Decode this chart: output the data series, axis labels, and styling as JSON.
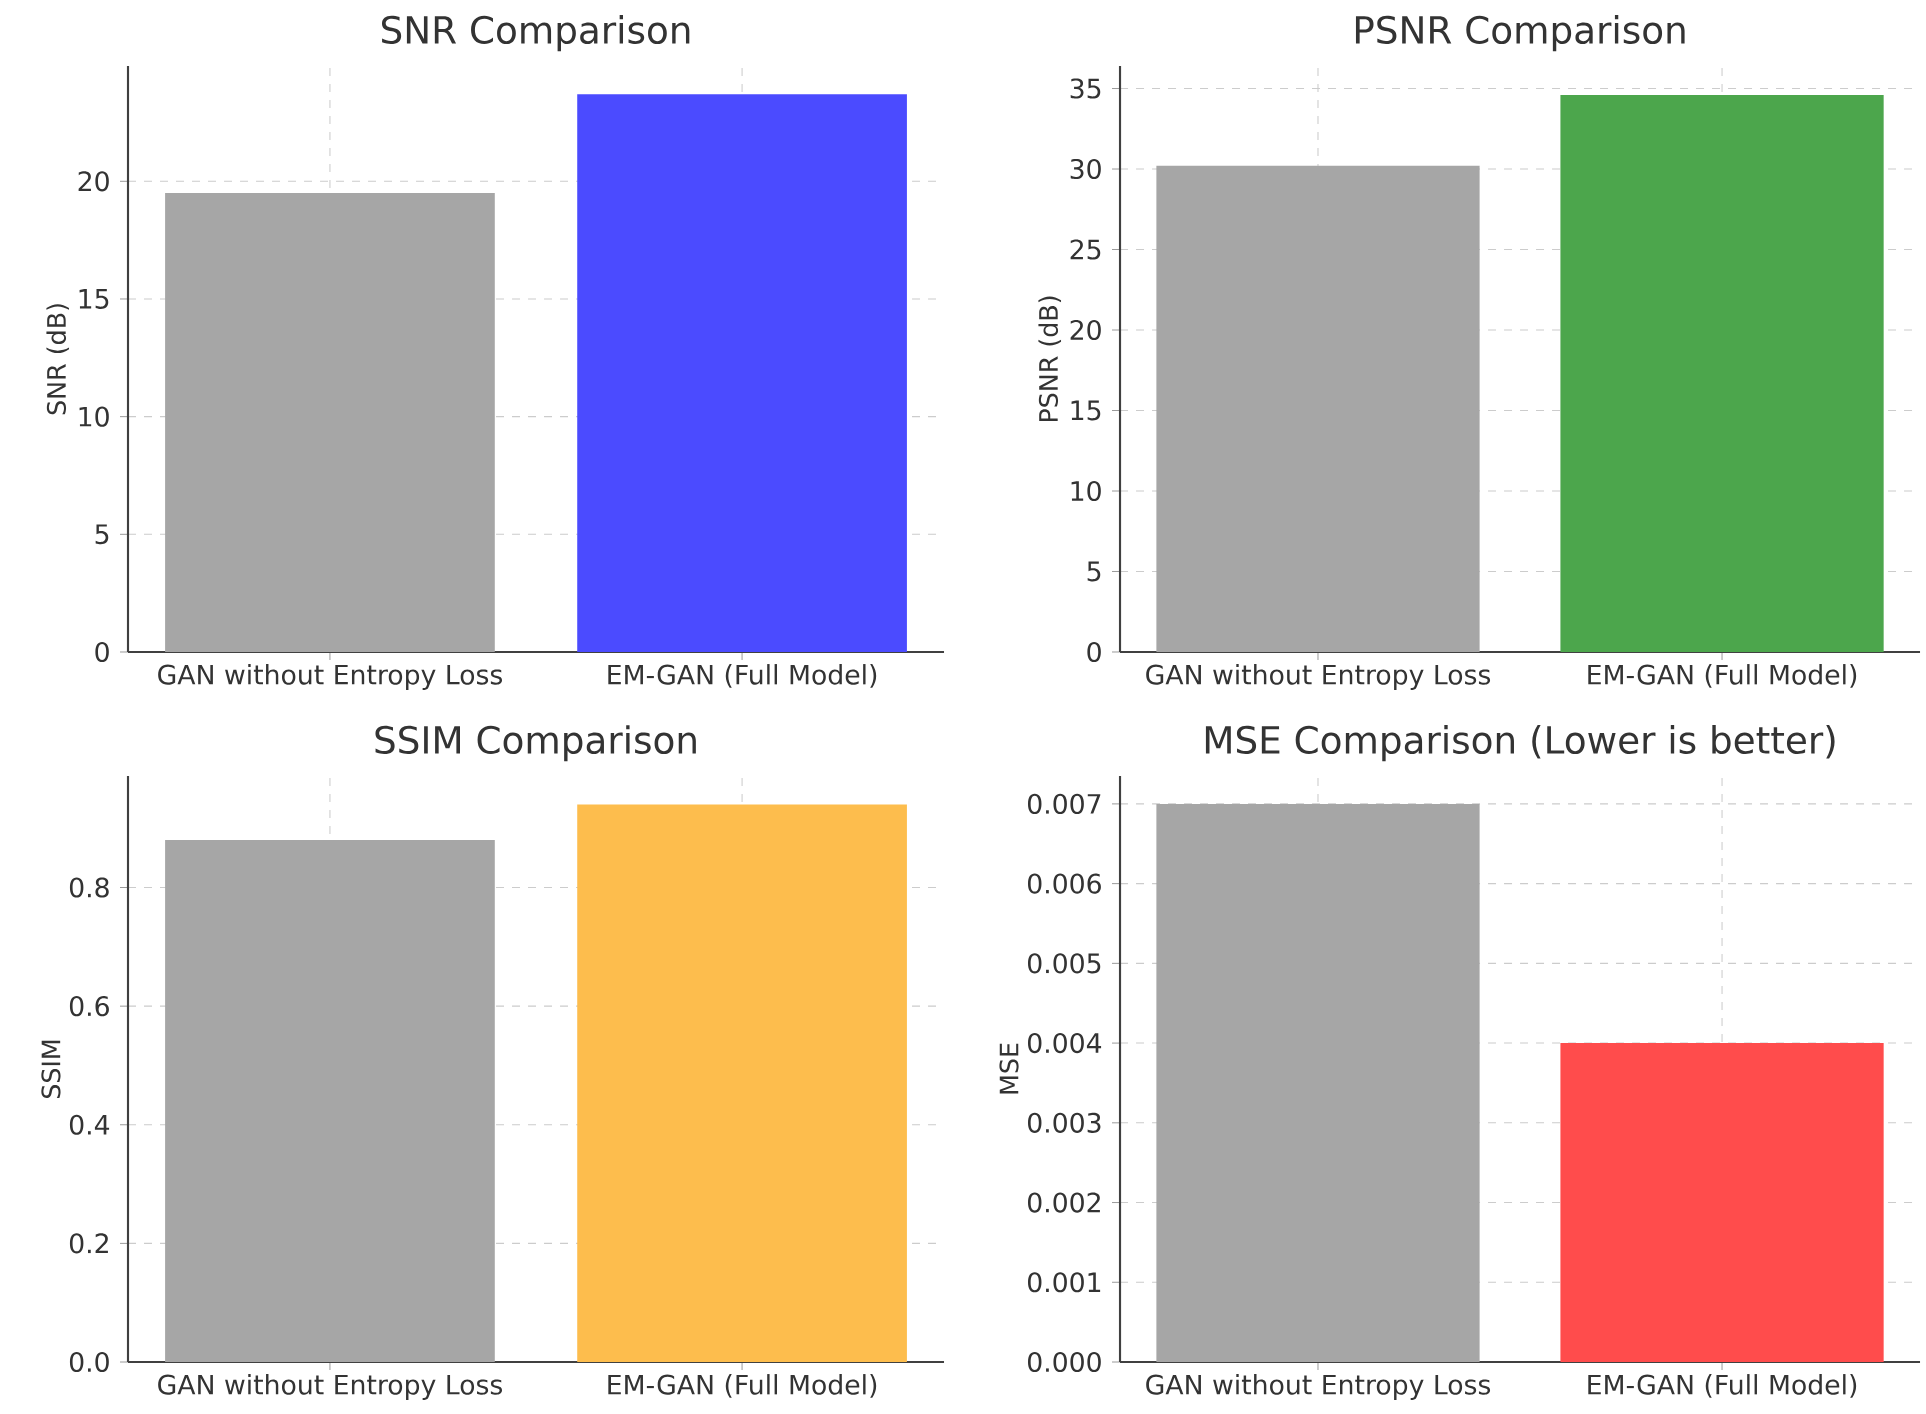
{
  "chart_data": [
    {
      "type": "bar",
      "title": "SNR Comparison",
      "ylabel": "SNR (dB)",
      "categories": [
        "GAN without Entropy Loss",
        "EM-GAN (Full Model)"
      ],
      "values": [
        19.5,
        23.7
      ],
      "colors": [
        "#a6a6a6",
        "#4b4bff"
      ],
      "ylim": [
        0,
        24.9
      ],
      "yticks": [
        0,
        5,
        10,
        15,
        20
      ],
      "grid": true
    },
    {
      "type": "bar",
      "title": "PSNR Comparison",
      "ylabel": "PSNR (dB)",
      "categories": [
        "GAN without Entropy Loss",
        "EM-GAN (Full Model)"
      ],
      "values": [
        30.2,
        34.6
      ],
      "colors": [
        "#a6a6a6",
        "#4ca64c"
      ],
      "ylim": [
        0,
        36.4
      ],
      "yticks": [
        0,
        5,
        10,
        15,
        20,
        25,
        30,
        35
      ],
      "grid": true
    },
    {
      "type": "bar",
      "title": "SSIM Comparison",
      "ylabel": "SSIM",
      "categories": [
        "GAN without Entropy Loss",
        "EM-GAN (Full Model)"
      ],
      "values": [
        0.88,
        0.94
      ],
      "colors": [
        "#a6a6a6",
        "#fdbd4d"
      ],
      "ylim": [
        0,
        0.988
      ],
      "yticks": [
        {
          "value": 0,
          "label": "0.0"
        },
        0.2,
        0.4,
        0.6,
        0.8
      ],
      "grid": true
    },
    {
      "type": "bar",
      "title": "MSE Comparison (Lower is better)",
      "ylabel": "MSE",
      "categories": [
        "GAN without Entropy Loss",
        "EM-GAN (Full Model)"
      ],
      "values": [
        0.007,
        0.004
      ],
      "colors": [
        "#a6a6a6",
        "#ff4c4c"
      ],
      "ylim": [
        0,
        0.00735
      ],
      "yticks": [
        {
          "value": 0,
          "label": "0.000"
        },
        0.001,
        0.002,
        0.003,
        0.004,
        0.005,
        0.006,
        0.007
      ],
      "grid": true
    }
  ]
}
